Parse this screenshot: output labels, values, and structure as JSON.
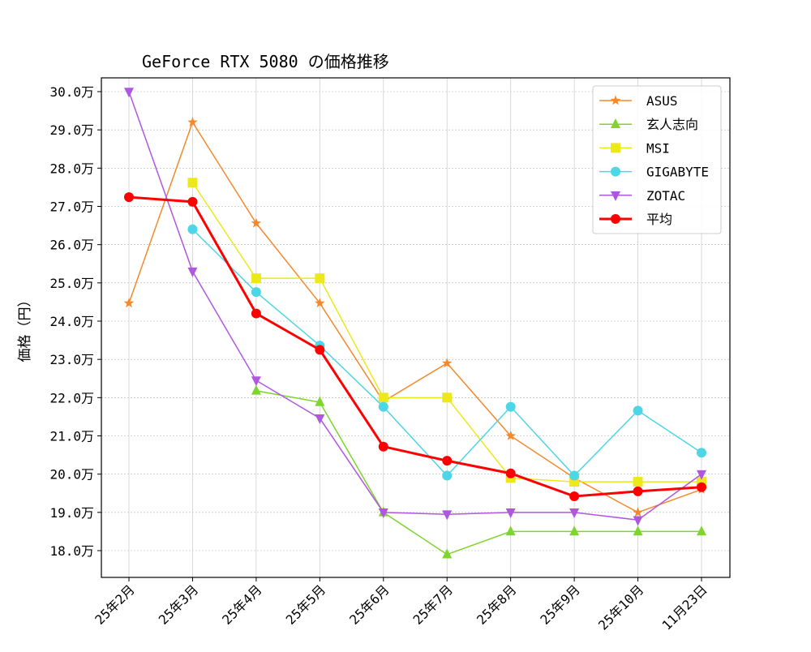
{
  "chart_data": {
    "type": "line",
    "title": "GeForce RTX 5080 の価格推移",
    "xlabel": "",
    "ylabel": "価格（円）",
    "categories": [
      "25年2月",
      "25年3月",
      "25年4月",
      "25年5月",
      "25年6月",
      "25年7月",
      "25年8月",
      "25年9月",
      "25年10月",
      "11月23日"
    ],
    "y_unit_suffix": "万",
    "ylim": [
      17.35,
      30.4
    ],
    "yticks": [
      18,
      19,
      20,
      21,
      22,
      23,
      24,
      25,
      26,
      27,
      28,
      29,
      30
    ],
    "ytick_labels": [
      "18.0万",
      "19.0万",
      "20.0万",
      "21.0万",
      "22.0万",
      "23.0万",
      "24.0万",
      "25.0万",
      "26.0万",
      "27.0万",
      "28.0万",
      "29.0万",
      "30.0万"
    ],
    "grid": true,
    "legend_position": "top-right",
    "series": [
      {
        "name": "ASUS",
        "color": "#f4892b",
        "marker": "star",
        "values": [
          24.47,
          29.2,
          26.56,
          24.47,
          21.9,
          22.9,
          21.0,
          19.9,
          19.0,
          19.6
        ]
      },
      {
        "name": "玄人志向",
        "color": "#7ed52b",
        "marker": "triangle-up",
        "values": [
          null,
          null,
          22.18,
          21.88,
          19.0,
          17.9,
          18.5,
          18.5,
          18.5,
          18.5
        ]
      },
      {
        "name": "MSI",
        "color": "#ede81b",
        "marker": "square",
        "values": [
          null,
          27.62,
          25.12,
          25.12,
          22.0,
          22.0,
          19.9,
          19.8,
          19.8,
          19.8
        ]
      },
      {
        "name": "GIGABYTE",
        "color": "#4dd6e6",
        "marker": "circle",
        "values": [
          null,
          26.4,
          24.76,
          23.36,
          21.76,
          19.96,
          21.76,
          19.96,
          21.66,
          20.56
        ]
      },
      {
        "name": "ZOTAC",
        "color": "#b057e0",
        "marker": "triangle-down",
        "values": [
          30.0,
          25.3,
          22.45,
          21.46,
          19.0,
          18.95,
          19.0,
          19.0,
          18.8,
          20.0
        ]
      },
      {
        "name": "平均",
        "color": "#ff0000",
        "marker": "circle",
        "bold": true,
        "values": [
          27.24,
          27.12,
          24.2,
          23.25,
          20.72,
          20.35,
          20.02,
          19.42,
          19.55,
          19.66
        ]
      }
    ]
  }
}
